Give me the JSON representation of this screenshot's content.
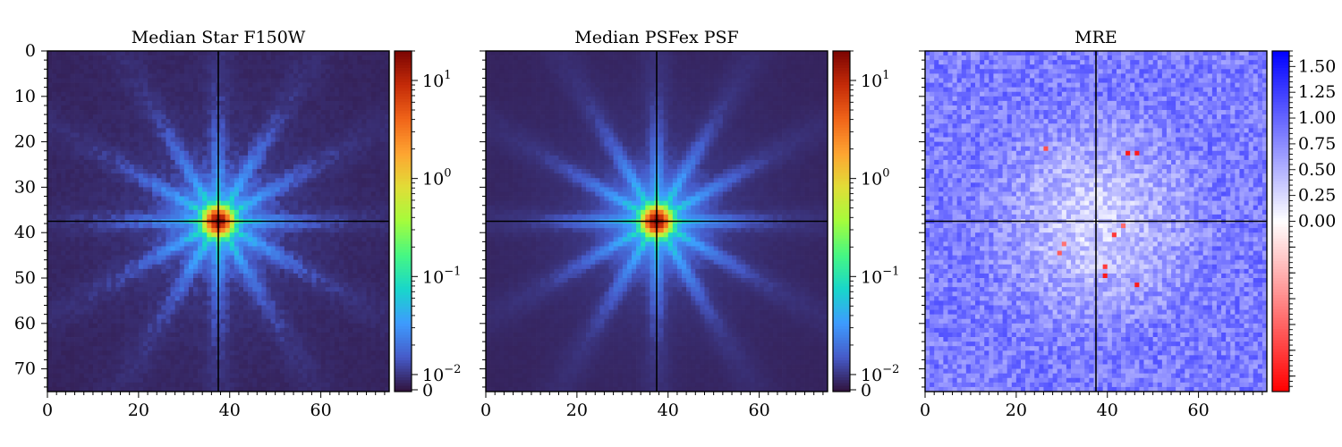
{
  "chart_data": [
    {
      "type": "heatmap",
      "title": "Median Star F150W",
      "image_size": [
        75,
        75
      ],
      "xlim": [
        0,
        75
      ],
      "ylim": [
        75,
        0
      ],
      "xticks": [
        0,
        20,
        40,
        60
      ],
      "yticks": [
        0,
        10,
        20,
        30,
        40,
        50,
        60,
        70
      ],
      "xtick_labels": [
        "0",
        "20",
        "40",
        "60"
      ],
      "ytick_labels": [
        "0",
        "10",
        "20",
        "30",
        "40",
        "50",
        "60",
        "70"
      ],
      "crosshair": {
        "x": 37,
        "y": 37
      },
      "colormap": "turbo",
      "color_scale": "symlog",
      "colorbar": {
        "range": [
          0,
          20
        ],
        "ticks": [
          0,
          0.01,
          0.1,
          1,
          10
        ],
        "labels": [
          {
            "base": "0",
            "exp": ""
          },
          {
            "base": "10",
            "exp": "−2"
          },
          {
            "base": "10",
            "exp": "−1"
          },
          {
            "base": "10",
            "exp": "0"
          },
          {
            "base": "10",
            "exp": "1"
          }
        ]
      },
      "peak_value": 20,
      "spikes": 12,
      "noise": 0.35
    },
    {
      "type": "heatmap",
      "title": "Median PSFex PSF",
      "image_size": [
        75,
        75
      ],
      "xlim": [
        0,
        75
      ],
      "ylim": [
        75,
        0
      ],
      "xticks": [
        0,
        20,
        40,
        60
      ],
      "xtick_labels": [
        "0",
        "20",
        "40",
        "60"
      ],
      "crosshair": {
        "x": 37,
        "y": 37
      },
      "colormap": "turbo",
      "color_scale": "symlog",
      "colorbar": {
        "range": [
          0,
          20
        ],
        "ticks": [
          0,
          0.01,
          0.1,
          1,
          10
        ],
        "labels": [
          {
            "base": "0",
            "exp": ""
          },
          {
            "base": "10",
            "exp": "−2"
          },
          {
            "base": "10",
            "exp": "−1"
          },
          {
            "base": "10",
            "exp": "0"
          },
          {
            "base": "10",
            "exp": "1"
          }
        ]
      },
      "peak_value": 20,
      "spikes": 12,
      "noise": 0.15
    },
    {
      "type": "heatmap",
      "title": "MRE",
      "image_size": [
        75,
        75
      ],
      "xlim": [
        0,
        75
      ],
      "ylim": [
        75,
        0
      ],
      "xticks": [
        0,
        20,
        40,
        60
      ],
      "xtick_labels": [
        "0",
        "20",
        "40",
        "60"
      ],
      "crosshair": {
        "x": 37,
        "y": 37
      },
      "colormap": "bwr_r",
      "colorbar": {
        "range": [
          -1.65,
          1.65
        ],
        "ticks": [
          0,
          0.25,
          0.5,
          0.75,
          1.0,
          1.25,
          1.5
        ],
        "labels": [
          "0.00",
          "0.25",
          "0.50",
          "0.75",
          "1.00",
          "1.25",
          "1.50"
        ]
      },
      "typical_value": 0.85,
      "red_pixels": [
        [
          30,
          42
        ],
        [
          29,
          44
        ],
        [
          39,
          47
        ],
        [
          44,
          22
        ],
        [
          46,
          22
        ],
        [
          26,
          21
        ],
        [
          39,
          49
        ],
        [
          46,
          51
        ],
        [
          43,
          38
        ],
        [
          41,
          40
        ]
      ]
    }
  ],
  "colors": {
    "axis": "#000000",
    "background": "#ffffff",
    "crosshair": "#000000"
  }
}
